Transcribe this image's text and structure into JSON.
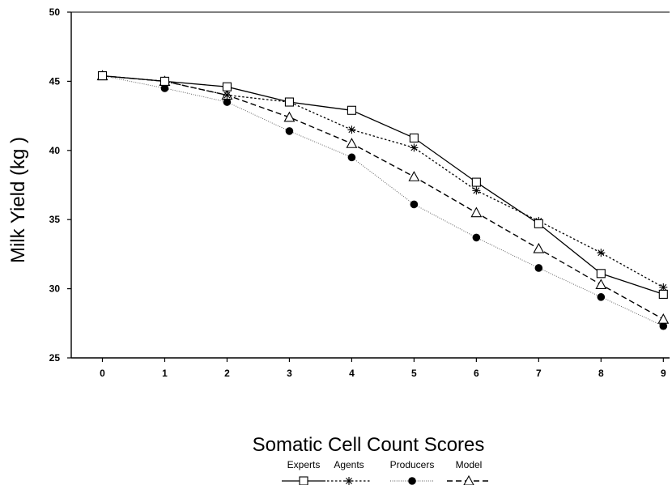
{
  "chart_data": {
    "type": "line",
    "xlabel": "Somatic Cell Count Scores",
    "ylabel": "Milk Yield (kg )",
    "x": [
      0,
      1,
      2,
      3,
      4,
      5,
      6,
      7,
      8,
      9
    ],
    "xlim": [
      -0.5,
      9.1
    ],
    "ylim": [
      25,
      50
    ],
    "yticks": [
      25,
      30,
      35,
      40,
      45,
      50
    ],
    "xticks": [
      0,
      1,
      2,
      3,
      4,
      5,
      6,
      7,
      8,
      9
    ],
    "grid": false,
    "legend_position": "bottom-center",
    "series": [
      {
        "name": "Experts",
        "marker": "square",
        "line": "solid",
        "color": "#000000",
        "values": [
          45.4,
          45.0,
          44.6,
          43.5,
          42.9,
          40.9,
          37.7,
          34.7,
          31.1,
          29.6
        ]
      },
      {
        "name": "Agents",
        "marker": "star",
        "line": "dotted",
        "color": "#000000",
        "values": [
          45.4,
          45.0,
          44.0,
          43.5,
          41.5,
          40.2,
          37.1,
          34.9,
          32.6,
          30.1
        ]
      },
      {
        "name": "Producers",
        "marker": "filled-circle",
        "line": "fine-dotted",
        "color": "#000000",
        "values": [
          45.4,
          44.5,
          43.5,
          41.4,
          39.5,
          36.1,
          33.7,
          31.5,
          29.4,
          27.3
        ]
      },
      {
        "name": "Model",
        "marker": "triangle",
        "line": "dashed",
        "color": "#000000",
        "values": [
          45.4,
          45.0,
          44.0,
          42.4,
          40.5,
          38.1,
          35.5,
          32.9,
          30.3,
          27.8
        ]
      }
    ]
  }
}
